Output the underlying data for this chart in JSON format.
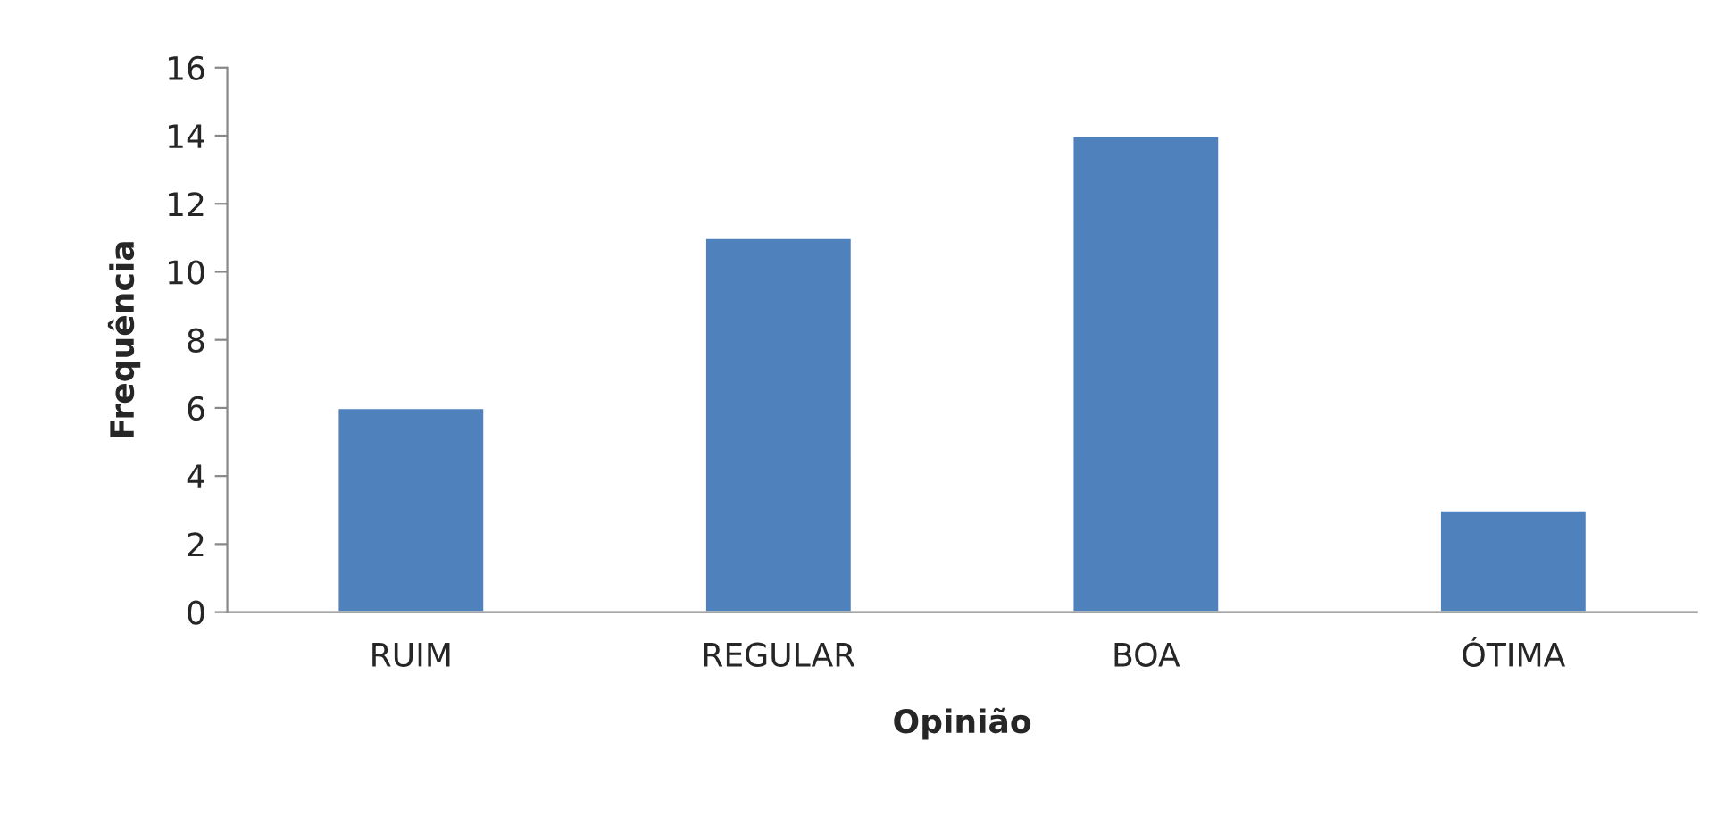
{
  "chart_data": {
    "type": "bar",
    "xlabel": "Opinião",
    "ylabel": "Frequência",
    "categories": [
      "RUIM",
      "REGULAR",
      "BOA",
      "ÓTIMA"
    ],
    "values": [
      6,
      11,
      14,
      3
    ],
    "color": "#4f81bd",
    "ylim": [
      0,
      16
    ],
    "yticks": [
      0,
      2,
      4,
      6,
      8,
      10,
      12,
      14,
      16
    ],
    "grid": false
  }
}
